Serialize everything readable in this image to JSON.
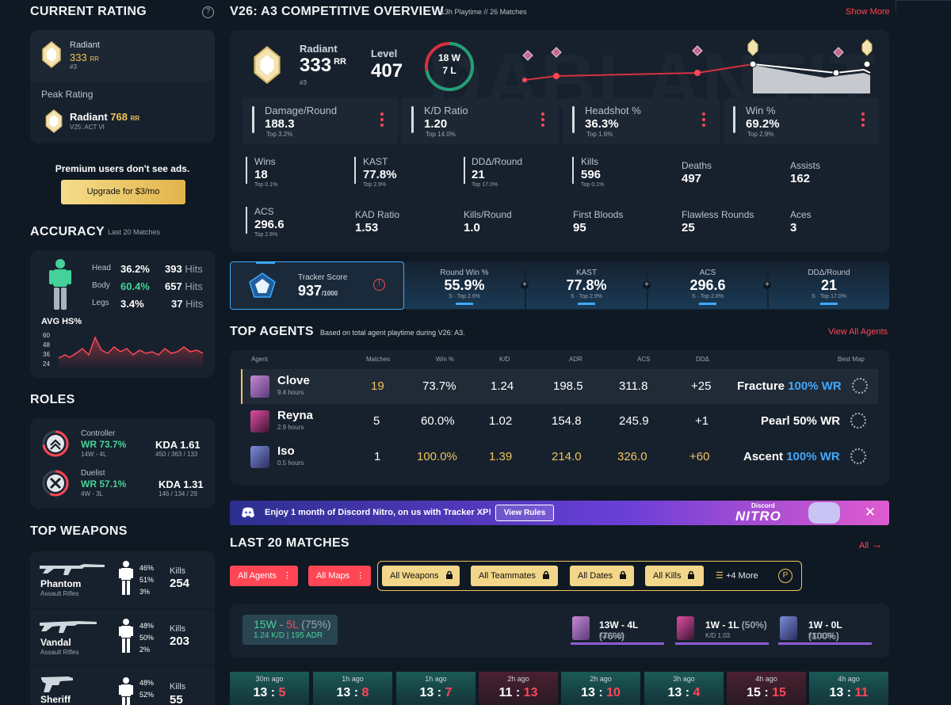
{
  "left": {
    "current_rating": {
      "title": "CURRENT RATING",
      "rank": "Radiant",
      "rr": "333",
      "rr_unit": "RR",
      "position": "#3",
      "peak_label": "Peak Rating",
      "peak_rank": "Radiant",
      "peak_rr": "768",
      "peak_rr_unit": "RR",
      "peak_act": "V25: ACT VI"
    },
    "ad": {
      "text": "Premium users don't see ads.",
      "button": "Upgrade for $3/mo"
    },
    "accuracy": {
      "title": "ACCURACY",
      "sub": "Last 20 Matches",
      "rows": [
        {
          "label": "Head",
          "pct": "36.2%",
          "hits": "393",
          "unit": "Hits"
        },
        {
          "label": "Body",
          "pct": "60.4%",
          "hits": "657",
          "unit": "Hits"
        },
        {
          "label": "Legs",
          "pct": "3.4%",
          "hits": "37",
          "unit": "Hits"
        }
      ],
      "avg_label": "AVG HS%",
      "y_ticks": [
        "60",
        "48",
        "36",
        "24"
      ]
    },
    "roles": {
      "title": "ROLES",
      "items": [
        {
          "name": "Controller",
          "wr": "WR 73.7%",
          "record": "14W - 4L",
          "kda": "KDA 1.61",
          "kda_detail": "450 / 363 / 133"
        },
        {
          "name": "Duelist",
          "wr": "WR 57.1%",
          "record": "4W - 3L",
          "kda": "KDA 1.31",
          "kda_detail": "146 / 134 / 29"
        }
      ]
    },
    "weapons": {
      "title": "TOP WEAPONS",
      "kills_label": "Kills",
      "items": [
        {
          "name": "Phantom",
          "type": "Assault Rifles",
          "head": "46%",
          "body": "51%",
          "legs": "3%",
          "kills": "254"
        },
        {
          "name": "Vandal",
          "type": "Assault Rifles",
          "head": "48%",
          "body": "50%",
          "legs": "2%",
          "kills": "203"
        },
        {
          "name": "Sheriff",
          "type": "",
          "head": "48%",
          "body": "52%",
          "legs": "",
          "kills": "55"
        }
      ]
    }
  },
  "overview": {
    "title": "V26: A3 COMPETITIVE OVERVIEW",
    "playtime": "13h Playtime",
    "sep": "//",
    "matches": "26 Matches",
    "show_more": "Show More",
    "rank": "Radiant",
    "rr": "333",
    "rr_unit": "RR",
    "position": "#3",
    "level_label": "Level",
    "level": "407",
    "wins": "18 W",
    "losses": "7 L",
    "win_fraction": 0.72,
    "stat_boxes": [
      {
        "label": "Damage/Round",
        "value": "188.3",
        "sub": "Top 3.2%"
      },
      {
        "label": "K/D Ratio",
        "value": "1.20",
        "sub": "Top 14.0%"
      },
      {
        "label": "Headshot %",
        "value": "36.3%",
        "sub": "Top 1.6%"
      },
      {
        "label": "Win %",
        "value": "69.2%",
        "sub": "Top 2.9%"
      }
    ],
    "grid": [
      {
        "label": "Wins",
        "value": "18",
        "sub": "Top 0.1%"
      },
      {
        "label": "KAST",
        "value": "77.8%",
        "sub": "Top 2.9%"
      },
      {
        "label": "DDΔ/Round",
        "value": "21",
        "sub": "Top 17.0%"
      },
      {
        "label": "Kills",
        "value": "596",
        "sub": "Top 0.1%"
      },
      {
        "label": "Deaths",
        "value": "497",
        "sub": ""
      },
      {
        "label": "Assists",
        "value": "162",
        "sub": ""
      },
      {
        "label": "ACS",
        "value": "296.6",
        "sub": "Top 2.6%"
      },
      {
        "label": "KAD Ratio",
        "value": "1.53",
        "sub": ""
      },
      {
        "label": "Kills/Round",
        "value": "1.0",
        "sub": ""
      },
      {
        "label": "First Bloods",
        "value": "95",
        "sub": ""
      },
      {
        "label": "Flawless Rounds",
        "value": "25",
        "sub": ""
      },
      {
        "label": "Aces",
        "value": "3",
        "sub": ""
      }
    ]
  },
  "tracker": {
    "label": "Tracker Score",
    "score": "937",
    "max": "/1000",
    "cells": [
      {
        "label": "Round Win %",
        "value": "55.9%",
        "sub": "S · Top 2.6%"
      },
      {
        "label": "KAST",
        "value": "77.8%",
        "sub": "S · Top 2.9%"
      },
      {
        "label": "ACS",
        "value": "296.6",
        "sub": "S · Top 2.6%"
      },
      {
        "label": "DDΔ/Round",
        "value": "21",
        "sub": "S · Top 17.0%"
      }
    ]
  },
  "agents": {
    "title": "TOP AGENTS",
    "sub": "Based on total agent playtime during V26: A3.",
    "view_all": "View All Agents",
    "columns": [
      "Agent",
      "Matches",
      "Win %",
      "K/D",
      "ADR",
      "ACS",
      "DDΔ",
      "Best Map"
    ],
    "rows": [
      {
        "name": "Clove",
        "hours": "9.4 hours",
        "matches": "19",
        "win": "73.7%",
        "kd": "1.24",
        "adr": "198.5",
        "acs": "311.8",
        "dd": "+25",
        "map": "Fracture",
        "map_wr": "100% WR"
      },
      {
        "name": "Reyna",
        "hours": "2.9 hours",
        "matches": "5",
        "win": "60.0%",
        "kd": "1.02",
        "adr": "154.8",
        "acs": "245.9",
        "dd": "+1",
        "map": "Pearl",
        "map_wr": "50% WR"
      },
      {
        "name": "Iso",
        "hours": "0.5 hours",
        "matches": "1",
        "win": "100.0%",
        "kd": "1.39",
        "adr": "214.0",
        "acs": "326.0",
        "dd": "+60",
        "map": "Ascent",
        "map_wr": "100% WR"
      }
    ]
  },
  "banner": {
    "text": "Enjoy 1 month of Discord Nitro, on us with Tracker XP!",
    "button": "View Rules",
    "brand_top": "Discord",
    "brand": "NITRO"
  },
  "matches": {
    "title": "LAST 20 MATCHES",
    "all": "All",
    "filters": [
      "All Agents",
      "All Maps",
      "All Weapons",
      "All Teammates",
      "All Dates",
      "All Kills"
    ],
    "more": "+4 More",
    "summary": {
      "wins": "15W",
      "sep": " - ",
      "losses": "5L",
      "pct": "(75%)",
      "detail": "1.24 K/D | 195 ADR"
    },
    "agent_summaries": [
      {
        "record": "13W - 4L",
        "pct": "(76%)",
        "kd": "K/D 1.25"
      },
      {
        "record": "1W - 1L",
        "pct": "(50%)",
        "kd": "K/D 1.03"
      },
      {
        "record": "1W - 0L",
        "pct": "(100%)",
        "kd": "K/D 1.39"
      }
    ],
    "recent": [
      {
        "time": "30m ago",
        "a": "13",
        "b": "5",
        "win": true
      },
      {
        "time": "1h ago",
        "a": "13",
        "b": "8",
        "win": true
      },
      {
        "time": "1h ago",
        "a": "13",
        "b": "7",
        "win": true
      },
      {
        "time": "2h ago",
        "a": "11",
        "b": "13",
        "win": false
      },
      {
        "time": "2h ago",
        "a": "13",
        "b": "10",
        "win": true
      },
      {
        "time": "3h ago",
        "a": "13",
        "b": "4",
        "win": true
      },
      {
        "time": "4h ago",
        "a": "15",
        "b": "15",
        "win": false
      },
      {
        "time": "4h ago",
        "a": "13",
        "b": "11",
        "win": true
      }
    ]
  },
  "colors": {
    "accent": "#ff4655",
    "gold": "#f0c35a",
    "green": "#44d29a",
    "blue": "#3fa8ff",
    "bg": "#0f1923",
    "card": "#17212d"
  }
}
